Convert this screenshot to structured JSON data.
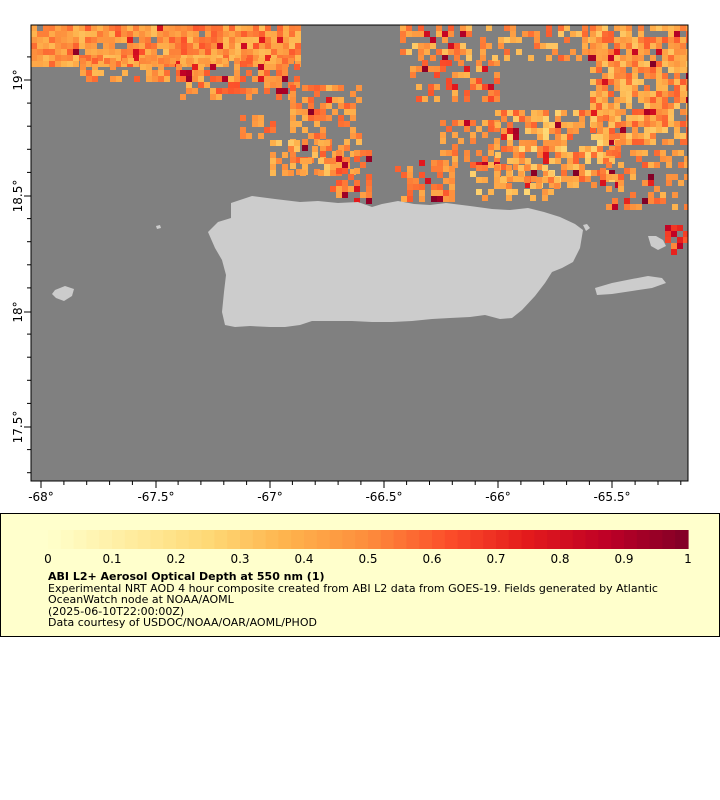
{
  "map": {
    "lon_ticks": [
      "-68°",
      "-67.5°",
      "-67°",
      "-66.5°",
      "-66°",
      "-65.5°"
    ],
    "lat_ticks": [
      "19°",
      "18.5°",
      "18°",
      "17.5°"
    ],
    "colors": {
      "ocean": "#808080",
      "land": "#cccccc",
      "frame": "#000000"
    }
  },
  "colorbar": {
    "ticks": [
      "0",
      "0.1",
      "0.2",
      "0.3",
      "0.4",
      "0.5",
      "0.6",
      "0.7",
      "0.8",
      "0.9",
      "1"
    ],
    "range": [
      0,
      1
    ],
    "colormap": [
      "#ffffcc",
      "#ffeda0",
      "#fed976",
      "#feb24c",
      "#fd8d3c",
      "#fc4e2a",
      "#e31a1c",
      "#bd0026",
      "#800026"
    ]
  },
  "legend": {
    "title": "ABI L2+ Aerosol Optical Depth at 550 nm (1)",
    "line1": "Experimental NRT AOD 4 hour composite created from ABI L2 data from GOES-19. Fields generated by Atlantic OceanWatch node at NOAA/AOML",
    "line2": "(2025-06-10T22:00:00Z)",
    "line3": "Data courtesy of USDOC/NOAA/OAR/AOML/PHOD"
  }
}
